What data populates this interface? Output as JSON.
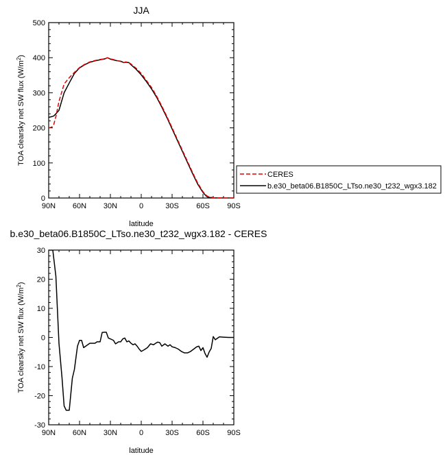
{
  "chart_data": [
    {
      "type": "line",
      "title": "JJA",
      "xlabel": "latitude",
      "ylabel": "TOA clearsky net SW flux (W/m",
      "ylabel_sup": "2",
      "ylabel_close": ")",
      "x_ticks": [
        {
          "v": -90,
          "label": "90N"
        },
        {
          "v": -60,
          "label": "60N"
        },
        {
          "v": -30,
          "label": "30N"
        },
        {
          "v": 0,
          "label": "0"
        },
        {
          "v": 30,
          "label": "30S"
        },
        {
          "v": 60,
          "label": "60S"
        },
        {
          "v": 90,
          "label": "90S"
        }
      ],
      "y_ticks": [
        0,
        100,
        200,
        300,
        400,
        500
      ],
      "xlim": [
        -90,
        90
      ],
      "ylim": [
        0,
        500
      ],
      "legend_position": "right",
      "series": [
        {
          "name": "CERES",
          "color": "#e00000",
          "dash": true,
          "x": [
            -90,
            -87,
            -85,
            -83,
            -80,
            -75,
            -70,
            -65,
            -60,
            -55,
            -50,
            -45,
            -40,
            -35,
            -33,
            -30,
            -25,
            -20,
            -17,
            -15,
            -12,
            -10,
            -5,
            0,
            5,
            10,
            15,
            20,
            25,
            30,
            35,
            40,
            45,
            50,
            55,
            60,
            63,
            65,
            70,
            75,
            80,
            85,
            90
          ],
          "y": [
            200,
            202,
            210,
            232,
            275,
            325,
            343,
            358,
            372,
            381,
            388,
            392,
            395,
            397,
            400,
            397,
            393,
            389,
            386,
            388,
            386,
            382,
            370,
            355,
            335,
            315,
            290,
            262,
            232,
            200,
            168,
            136,
            104,
            72,
            42,
            18,
            8,
            4,
            1,
            0.5,
            0,
            0,
            0
          ]
        },
        {
          "name": "b.e30_beta06.B1850C_LTso.ne30_t232_wgx3.182",
          "color": "#000000",
          "dash": false,
          "x": [
            -90,
            -87,
            -85,
            -83,
            -80,
            -75,
            -70,
            -65,
            -60,
            -55,
            -50,
            -45,
            -40,
            -35,
            -33,
            -30,
            -25,
            -20,
            -17,
            -15,
            -12,
            -10,
            -5,
            0,
            5,
            10,
            15,
            20,
            25,
            30,
            35,
            40,
            45,
            50,
            55,
            60,
            63,
            65,
            70,
            75,
            80,
            85,
            90
          ],
          "y": [
            230,
            232,
            234,
            240,
            250,
            300,
            328,
            355,
            371,
            380,
            387,
            391,
            394,
            397,
            400,
            396,
            392,
            390,
            386,
            387,
            386,
            380,
            367,
            351,
            332,
            311,
            287,
            259,
            229,
            197,
            165,
            133,
            101,
            69,
            39,
            16,
            6,
            2,
            0.5,
            0,
            0,
            0,
            0
          ]
        }
      ]
    },
    {
      "type": "line",
      "title": "b.e30_beta06.B1850C_LTso.ne30_t232_wgx3.182 - CERES",
      "xlabel": "latitude",
      "ylabel": "TOA clearsky net SW flux (W/m",
      "ylabel_sup": "2",
      "ylabel_close": ")",
      "x_ticks": [
        {
          "v": -90,
          "label": "90N"
        },
        {
          "v": -60,
          "label": "60N"
        },
        {
          "v": -30,
          "label": "30N"
        },
        {
          "v": 0,
          "label": "0"
        },
        {
          "v": 30,
          "label": "30S"
        },
        {
          "v": 60,
          "label": "60S"
        },
        {
          "v": 90,
          "label": "90S"
        }
      ],
      "y_ticks": [
        -30,
        -20,
        -10,
        0,
        10,
        20,
        30
      ],
      "xlim": [
        -90,
        90
      ],
      "ylim": [
        -30,
        30
      ],
      "series": [
        {
          "color": "#000000",
          "dash": false,
          "x": [
            -90,
            -86,
            -83,
            -80,
            -77,
            -75,
            -73,
            -70,
            -67,
            -65,
            -62,
            -60,
            -58,
            -56,
            -54,
            -50,
            -47,
            -45,
            -43,
            -40,
            -38,
            -36,
            -34,
            -32,
            -30,
            -27,
            -25,
            -22,
            -20,
            -18,
            -16,
            -14,
            -12,
            -10,
            -8,
            -6,
            -4,
            -2,
            0,
            3,
            6,
            9,
            12,
            14,
            16,
            18,
            20,
            23,
            26,
            28,
            30,
            33,
            36,
            39,
            42,
            45,
            48,
            51,
            54,
            56,
            58,
            60,
            62,
            64,
            66,
            68,
            70,
            72,
            74,
            76,
            80,
            85,
            90
          ],
          "y": [
            30,
            30,
            21,
            -2,
            -14,
            -23.5,
            -25,
            -25,
            -14,
            -11,
            -3,
            -1,
            -1,
            -3.5,
            -3,
            -2,
            -2,
            -2,
            -1.5,
            -1.5,
            1.7,
            1.8,
            1.8,
            -0.2,
            -0.5,
            -1,
            -2.2,
            -1.5,
            -1.5,
            -0.5,
            -0.2,
            -1.5,
            -1.2,
            -2,
            -2.5,
            -2.2,
            -3,
            -4,
            -4.8,
            -4.2,
            -3.5,
            -2.2,
            -2.5,
            -2.0,
            -1.6,
            -1.8,
            -3,
            -2.2,
            -3,
            -2.5,
            -3.2,
            -3.5,
            -4,
            -4.8,
            -5.3,
            -5.3,
            -4.8,
            -4,
            -3.2,
            -3,
            -4.5,
            -3.5,
            -5.5,
            -6.8,
            -5,
            -3.8,
            0.3,
            -0.8,
            -0.3,
            0.2,
            0.1,
            0,
            0
          ]
        }
      ]
    }
  ],
  "legend": {
    "entries": [
      {
        "label": "CERES",
        "color": "#e00000",
        "dash": true
      },
      {
        "label": "b.e30_beta06.B1850C_LTso.ne30_t232_wgx3.182",
        "color": "#000000",
        "dash": false
      }
    ]
  }
}
